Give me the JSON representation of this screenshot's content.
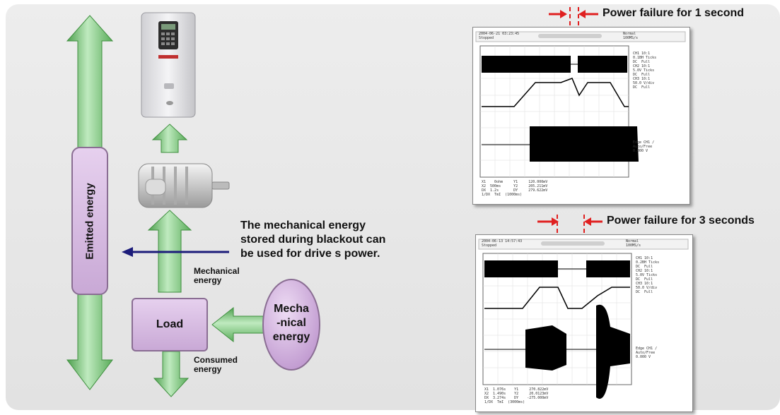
{
  "labels": {
    "emitted_energy": "Emitted energy",
    "description_line1": "The mechanical energy",
    "description_line2": "stored during blackout can",
    "description_line3": "be used for drive s power.",
    "mechanical_energy_line1": "Mechanical",
    "mechanical_energy_line2": "energy",
    "load": "Load",
    "mecha_line1": "Mecha",
    "mecha_line2": "-nical",
    "mecha_line3": "energy",
    "consumed_line1": "Consumed",
    "consumed_line2": "energy",
    "power_failure_1s": "Power failure for 1 second",
    "power_failure_3s": "Power failure for 3 seconds"
  },
  "scope1": {
    "header_left": "2004-06-21 03:23:45",
    "header_sub": "Stopped",
    "header_right": "Normal",
    "header_right2": "100MS/s",
    "side_text": "CH1 10:1\n0.1BH Ticks\nDC  Full\nCH2 10:1\n5.0V Ticks\nDC  Full\nCH3 10:1\n50.0 V/div\nDC  Full",
    "side_text2": "Edge CH1 /\nAuto/Free\n0.000 V",
    "footer_text": "X1    0ohm     Y1     120.000mV\nX2  500ms      Y2     205.211mV\nDX  1.2s       DY     279.622mV\n1/DX  TmI  (1000ms)"
  },
  "scope2": {
    "header_left": "2004-06-13 14:57:43",
    "header_sub": "Stopped",
    "header_right": "Normal",
    "header_right2": "100MS/s",
    "side_text": "CH1 10:1\n0.2BH Ticks\nDC  Full\nCH2 10:1\n5.0V Ticks\nDC  Full\nCH3 10:1\n50.0 V/div\nDC  Full",
    "side_text2": "Edge CH1 /\nAuto/Free\n0.000 V",
    "footer_text": "X1  1.076s    Y1     270.822mV\nX2  1.490s    Y2     20.0123mV\nDX  3.274s    DY    -275.000mV\n1/DX  TmI  (3000ms)"
  },
  "colors": {
    "green_arrow": "#7fc87f",
    "purple_box": "#d8b8e4",
    "red_marker": "#e02020",
    "blue_arrow": "#1c1c7a"
  }
}
